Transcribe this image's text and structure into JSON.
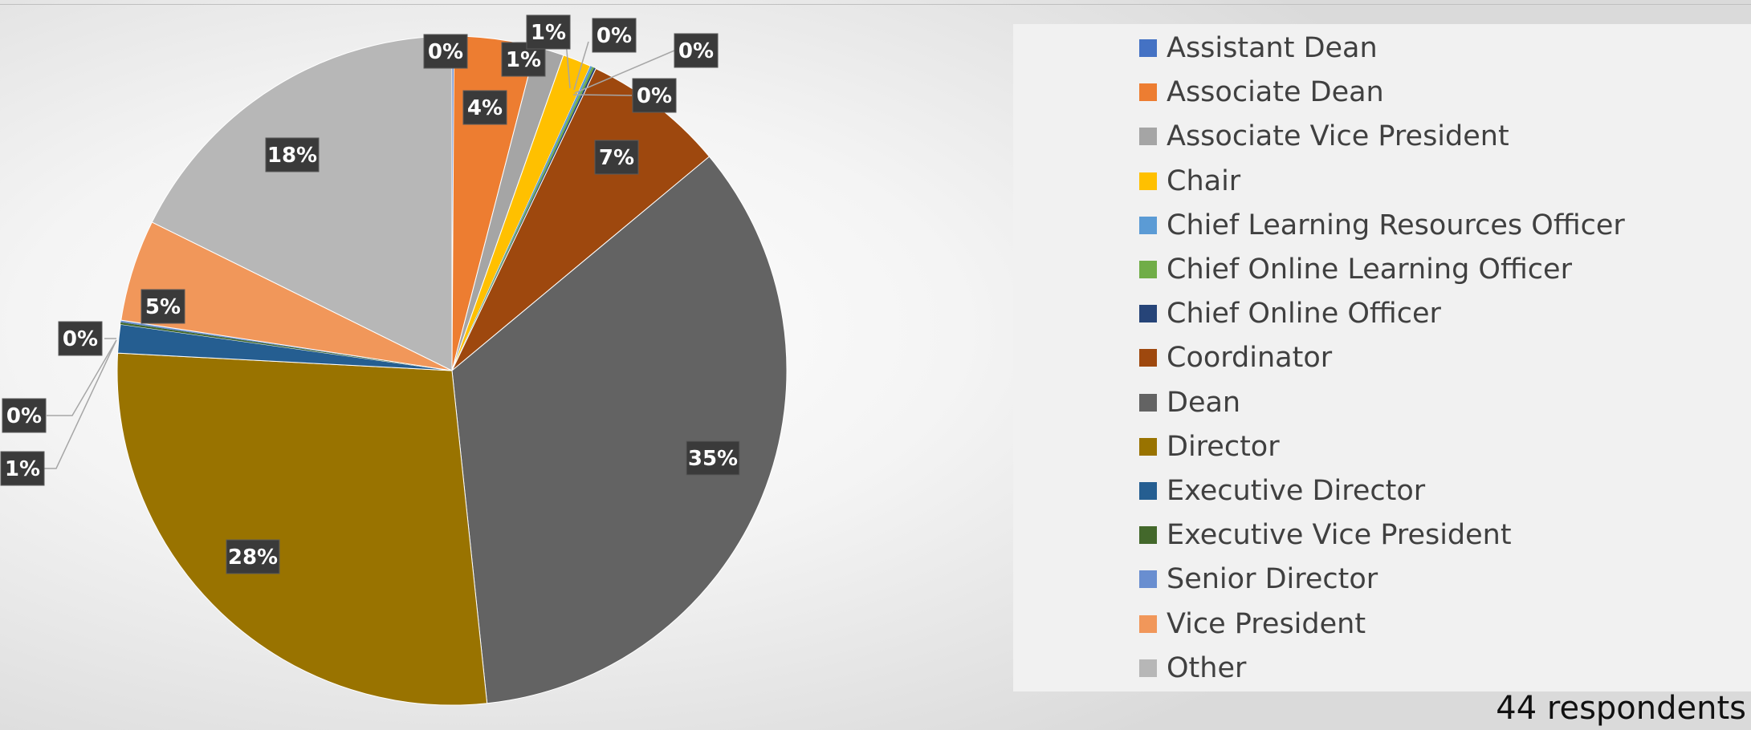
{
  "chart_data": {
    "type": "pie",
    "categories": [
      "Assistant Dean",
      "Associate Dean",
      "Associate Vice President",
      "Chair",
      "Chief Learning Resources Officer",
      "Chief Online Learning Officer",
      "Chief Online Officer",
      "Coordinator",
      "Dean",
      "Director",
      "Executive Director",
      "Executive Vice President",
      "Senior Director",
      "Vice President",
      "Other"
    ],
    "values": [
      0.1,
      4,
      1.4,
      1.4,
      0.1,
      0.1,
      0.1,
      7,
      35,
      28,
      1.4,
      0.1,
      0.1,
      5,
      18
    ],
    "data_labels": [
      "0%",
      "4%",
      "1%",
      "1%",
      "0%",
      "0%",
      "0%",
      "7%",
      "35%",
      "28%",
      "1%",
      "0%",
      "0%",
      "5%",
      "18%"
    ],
    "colors": [
      "#4472c4",
      "#ed7d31",
      "#a5a5a5",
      "#ffc000",
      "#5b9bd5",
      "#70ad47",
      "#264478",
      "#9e480e",
      "#636363",
      "#997300",
      "#255e91",
      "#43682b",
      "#698ed0",
      "#f1975a",
      "#b7b7b7"
    ],
    "legend_position": "right"
  },
  "footer": {
    "respondents": "44 respondents"
  }
}
